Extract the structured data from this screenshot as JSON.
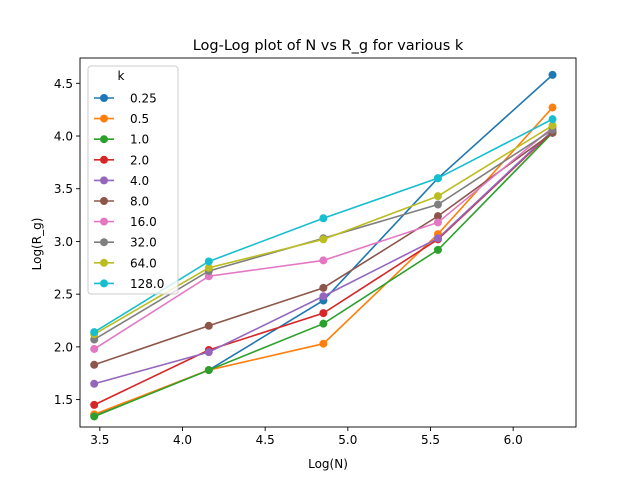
{
  "chart_data": {
    "type": "line",
    "title": "Log-Log plot of N vs R_g for various k",
    "xlabel": "Log(N)",
    "ylabel": "Log(R_g)",
    "xlim": [
      3.38,
      6.38
    ],
    "ylim": [
      1.24,
      4.74
    ],
    "xticks": [
      3.5,
      4.0,
      4.5,
      5.0,
      5.5,
      6.0
    ],
    "yticks": [
      1.5,
      2.0,
      2.5,
      3.0,
      3.5,
      4.0,
      4.5
    ],
    "xtick_labels": [
      "3.5",
      "4.0",
      "4.5",
      "5.0",
      "5.5",
      "6.0"
    ],
    "ytick_labels": [
      "1.5",
      "2.0",
      "2.5",
      "3.0",
      "3.5",
      "4.0",
      "4.5"
    ],
    "grid": false,
    "legend": {
      "title": "k",
      "placement": "top-left"
    },
    "x": [
      3.466,
      4.159,
      4.852,
      5.545,
      6.238
    ],
    "series": [
      {
        "name": "0.25",
        "color": "#1f77b4",
        "values": [
          1.35,
          1.78,
          2.44,
          3.6,
          4.58
        ]
      },
      {
        "name": "0.5",
        "color": "#ff7f0e",
        "values": [
          1.36,
          1.78,
          2.03,
          3.07,
          4.27
        ]
      },
      {
        "name": "1.0",
        "color": "#2ca02c",
        "values": [
          1.34,
          1.78,
          2.22,
          2.92,
          4.03
        ]
      },
      {
        "name": "2.0",
        "color": "#d62728",
        "values": [
          1.45,
          1.97,
          2.32,
          3.02,
          4.04
        ]
      },
      {
        "name": "4.0",
        "color": "#9467bd",
        "values": [
          1.65,
          1.95,
          2.48,
          3.03,
          4.05
        ]
      },
      {
        "name": "8.0",
        "color": "#8c564b",
        "values": [
          1.83,
          2.2,
          2.56,
          3.24,
          4.03
        ]
      },
      {
        "name": "16.0",
        "color": "#e377c2",
        "values": [
          1.98,
          2.67,
          2.82,
          3.18,
          4.08
        ]
      },
      {
        "name": "32.0",
        "color": "#7f7f7f",
        "values": [
          2.07,
          2.72,
          3.03,
          3.35,
          4.06
        ]
      },
      {
        "name": "64.0",
        "color": "#bcbd22",
        "values": [
          2.12,
          2.75,
          3.02,
          3.43,
          4.1
        ]
      },
      {
        "name": "128.0",
        "color": "#17becf",
        "values": [
          2.14,
          2.81,
          3.22,
          3.6,
          4.16
        ]
      }
    ]
  }
}
